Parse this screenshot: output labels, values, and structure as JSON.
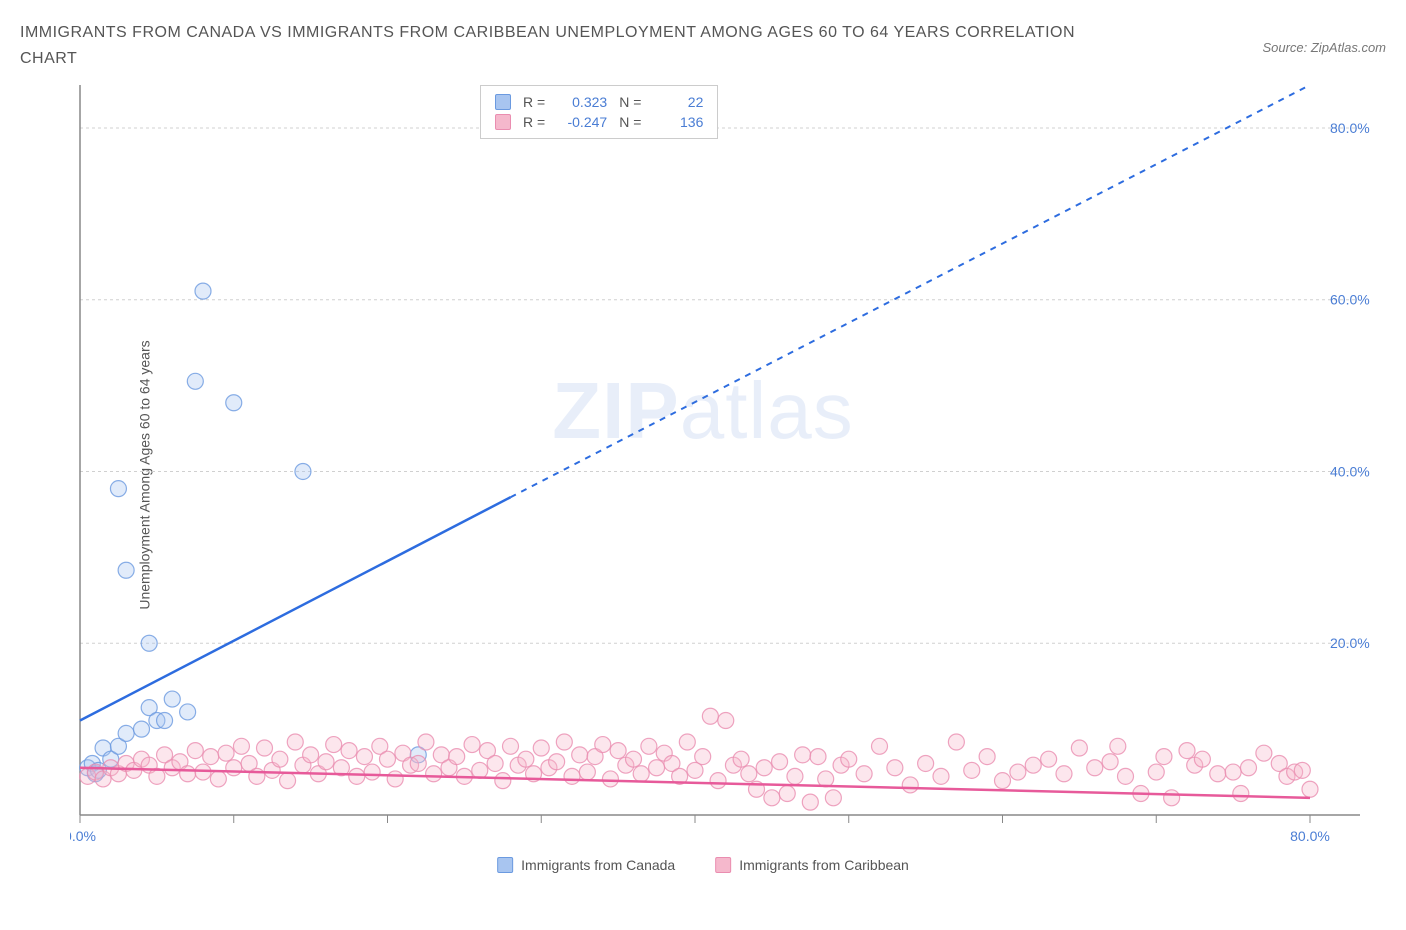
{
  "title": "IMMIGRANTS FROM CANADA VS IMMIGRANTS FROM CARIBBEAN UNEMPLOYMENT AMONG AGES 60 TO 64 YEARS CORRELATION CHART",
  "source": "Source: ZipAtlas.com",
  "y_axis_label": "Unemployment Among Ages 60 to 64 years",
  "watermark_bold": "ZIP",
  "watermark_light": "atlas",
  "chart": {
    "type": "scatter",
    "background_color": "#ffffff",
    "grid_color": "#d0d0d0",
    "axis_color": "#888888",
    "tick_label_color": "#4a7dd4",
    "xlim": [
      0,
      80
    ],
    "ylim": [
      0,
      85
    ],
    "y_ticks": [
      20,
      40,
      60,
      80
    ],
    "y_tick_labels": [
      "20.0%",
      "40.0%",
      "60.0%",
      "80.0%"
    ],
    "x_ticks": [
      0,
      10,
      20,
      30,
      40,
      50,
      60,
      70,
      80
    ],
    "x_tick_labels_shown": {
      "0": "0.0%",
      "80": "80.0%"
    },
    "marker_radius": 8,
    "marker_fill_opacity": 0.35,
    "trend_line_width": 2.5,
    "series": [
      {
        "name": "Immigrants from Canada",
        "color_fill": "#a8c5f0",
        "color_stroke": "#6b9ae0",
        "trend_color": "#2d6cdf",
        "R": "0.323",
        "N": "22",
        "trend_solid": {
          "x1": 0,
          "y1": 11,
          "x2": 28,
          "y2": 37
        },
        "trend_dashed": {
          "x1": 28,
          "y1": 37,
          "x2": 80,
          "y2": 85
        },
        "points": [
          [
            0.5,
            5.5
          ],
          [
            0.8,
            6.0
          ],
          [
            1.0,
            4.8
          ],
          [
            1.2,
            5.2
          ],
          [
            1.5,
            7.8
          ],
          [
            2.0,
            6.5
          ],
          [
            2.5,
            8.0
          ],
          [
            3.0,
            9.5
          ],
          [
            4.0,
            10.0
          ],
          [
            4.5,
            12.5
          ],
          [
            5.0,
            11.0
          ],
          [
            5.5,
            11.0
          ],
          [
            6.0,
            13.5
          ],
          [
            7.0,
            12.0
          ],
          [
            4.5,
            20.0
          ],
          [
            3.0,
            28.5
          ],
          [
            2.5,
            38.0
          ],
          [
            7.5,
            50.5
          ],
          [
            10.0,
            48.0
          ],
          [
            14.5,
            40.0
          ],
          [
            8.0,
            61.0
          ],
          [
            22.0,
            7.0
          ]
        ]
      },
      {
        "name": "Immigrants from Caribbean",
        "color_fill": "#f5b8cc",
        "color_stroke": "#ea8db0",
        "trend_color": "#e75a9a",
        "R": "-0.247",
        "N": "136",
        "trend_solid": {
          "x1": 0,
          "y1": 5.5,
          "x2": 80,
          "y2": 2.0
        },
        "points": [
          [
            0.5,
            4.5
          ],
          [
            1.0,
            5.0
          ],
          [
            1.5,
            4.2
          ],
          [
            2.0,
            5.5
          ],
          [
            2.5,
            4.8
          ],
          [
            3.0,
            6.0
          ],
          [
            3.5,
            5.2
          ],
          [
            4.0,
            6.5
          ],
          [
            4.5,
            5.8
          ],
          [
            5.0,
            4.5
          ],
          [
            5.5,
            7.0
          ],
          [
            6.0,
            5.5
          ],
          [
            6.5,
            6.2
          ],
          [
            7.0,
            4.8
          ],
          [
            7.5,
            7.5
          ],
          [
            8.0,
            5.0
          ],
          [
            8.5,
            6.8
          ],
          [
            9.0,
            4.2
          ],
          [
            9.5,
            7.2
          ],
          [
            10.0,
            5.5
          ],
          [
            10.5,
            8.0
          ],
          [
            11.0,
            6.0
          ],
          [
            11.5,
            4.5
          ],
          [
            12.0,
            7.8
          ],
          [
            12.5,
            5.2
          ],
          [
            13.0,
            6.5
          ],
          [
            13.5,
            4.0
          ],
          [
            14.0,
            8.5
          ],
          [
            14.5,
            5.8
          ],
          [
            15.0,
            7.0
          ],
          [
            15.5,
            4.8
          ],
          [
            16.0,
            6.2
          ],
          [
            16.5,
            8.2
          ],
          [
            17.0,
            5.5
          ],
          [
            17.5,
            7.5
          ],
          [
            18.0,
            4.5
          ],
          [
            18.5,
            6.8
          ],
          [
            19.0,
            5.0
          ],
          [
            19.5,
            8.0
          ],
          [
            20.0,
            6.5
          ],
          [
            20.5,
            4.2
          ],
          [
            21.0,
            7.2
          ],
          [
            21.5,
            5.8
          ],
          [
            22.0,
            6.0
          ],
          [
            22.5,
            8.5
          ],
          [
            23.0,
            4.8
          ],
          [
            23.5,
            7.0
          ],
          [
            24.0,
            5.5
          ],
          [
            24.5,
            6.8
          ],
          [
            25.0,
            4.5
          ],
          [
            25.5,
            8.2
          ],
          [
            26.0,
            5.2
          ],
          [
            26.5,
            7.5
          ],
          [
            27.0,
            6.0
          ],
          [
            27.5,
            4.0
          ],
          [
            28.0,
            8.0
          ],
          [
            28.5,
            5.8
          ],
          [
            29.0,
            6.5
          ],
          [
            29.5,
            4.8
          ],
          [
            30.0,
            7.8
          ],
          [
            30.5,
            5.5
          ],
          [
            31.0,
            6.2
          ],
          [
            31.5,
            8.5
          ],
          [
            32.0,
            4.5
          ],
          [
            32.5,
            7.0
          ],
          [
            33.0,
            5.0
          ],
          [
            33.5,
            6.8
          ],
          [
            34.0,
            8.2
          ],
          [
            34.5,
            4.2
          ],
          [
            35.0,
            7.5
          ],
          [
            35.5,
            5.8
          ],
          [
            36.0,
            6.5
          ],
          [
            36.5,
            4.8
          ],
          [
            37.0,
            8.0
          ],
          [
            37.5,
            5.5
          ],
          [
            38.0,
            7.2
          ],
          [
            38.5,
            6.0
          ],
          [
            39.0,
            4.5
          ],
          [
            39.5,
            8.5
          ],
          [
            40.0,
            5.2
          ],
          [
            40.5,
            6.8
          ],
          [
            41.0,
            11.5
          ],
          [
            41.5,
            4.0
          ],
          [
            42.0,
            11.0
          ],
          [
            42.5,
            5.8
          ],
          [
            43.0,
            6.5
          ],
          [
            43.5,
            4.8
          ],
          [
            44.0,
            3.0
          ],
          [
            44.5,
            5.5
          ],
          [
            45.0,
            2.0
          ],
          [
            45.5,
            6.2
          ],
          [
            46.0,
            2.5
          ],
          [
            46.5,
            4.5
          ],
          [
            47.0,
            7.0
          ],
          [
            47.5,
            1.5
          ],
          [
            48.0,
            6.8
          ],
          [
            48.5,
            4.2
          ],
          [
            49.0,
            2.0
          ],
          [
            49.5,
            5.8
          ],
          [
            50.0,
            6.5
          ],
          [
            51.0,
            4.8
          ],
          [
            52.0,
            8.0
          ],
          [
            53.0,
            5.5
          ],
          [
            54.0,
            3.5
          ],
          [
            55.0,
            6.0
          ],
          [
            56.0,
            4.5
          ],
          [
            57.0,
            8.5
          ],
          [
            58.0,
            5.2
          ],
          [
            59.0,
            6.8
          ],
          [
            60.0,
            4.0
          ],
          [
            61.0,
            5.0
          ],
          [
            62.0,
            5.8
          ],
          [
            63.0,
            6.5
          ],
          [
            64.0,
            4.8
          ],
          [
            65.0,
            7.8
          ],
          [
            66.0,
            5.5
          ],
          [
            67.0,
            6.2
          ],
          [
            67.5,
            8.0
          ],
          [
            68.0,
            4.5
          ],
          [
            69.0,
            2.5
          ],
          [
            70.0,
            5.0
          ],
          [
            70.5,
            6.8
          ],
          [
            71.0,
            2.0
          ],
          [
            72.0,
            7.5
          ],
          [
            72.5,
            5.8
          ],
          [
            73.0,
            6.5
          ],
          [
            74.0,
            4.8
          ],
          [
            75.0,
            5.0
          ],
          [
            75.5,
            2.5
          ],
          [
            76.0,
            5.5
          ],
          [
            77.0,
            7.2
          ],
          [
            78.0,
            6.0
          ],
          [
            78.5,
            4.5
          ],
          [
            79.0,
            5.0
          ],
          [
            79.5,
            5.2
          ],
          [
            80.0,
            3.0
          ]
        ]
      }
    ]
  },
  "stats_labels": {
    "R": "R =",
    "N": "N ="
  }
}
